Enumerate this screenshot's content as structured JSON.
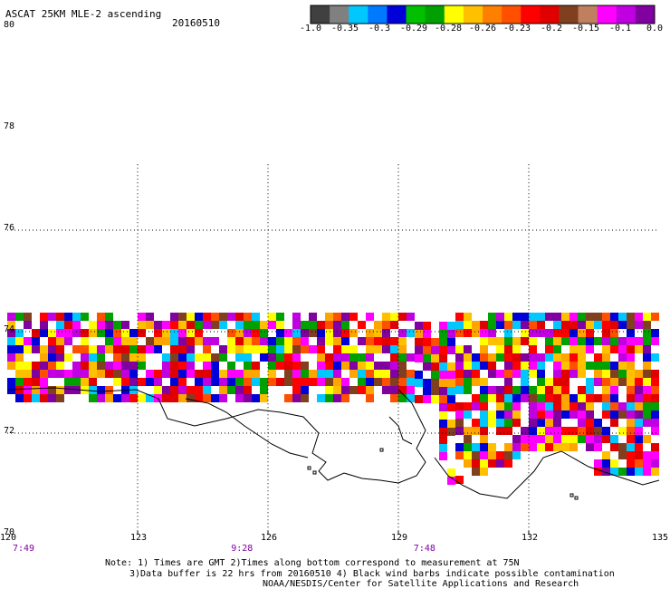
{
  "header": {
    "title": "ASCAT 25KM MLE-2 ascending",
    "date": "20160510"
  },
  "colorbar": {
    "colors": [
      "#404040",
      "#808080",
      "#00c8ff",
      "#0078ff",
      "#0000d8",
      "#00c000",
      "#00a000",
      "#ffff00",
      "#ffc000",
      "#ff8000",
      "#ff5000",
      "#ff0000",
      "#e00000",
      "#804020",
      "#c08060",
      "#ff00ff",
      "#c000e0",
      "#8000a0"
    ],
    "labels": [
      "-1.0",
      "-0.35",
      "-0.3",
      "-0.29",
      "-0.28",
      "-0.26",
      "-0.23",
      "-0.2",
      "-0.15",
      "-0.1",
      "0.0"
    ]
  },
  "axes": {
    "lon_ticks": [
      "120",
      "123",
      "126",
      "129",
      "132",
      "135"
    ],
    "lat_ticks": [
      "70",
      "72",
      "74",
      "76",
      "78",
      "80"
    ],
    "lon_range": [
      120,
      135
    ],
    "lat_range": [
      70,
      80
    ],
    "times": [
      "7:49",
      "9:28",
      "7:48"
    ]
  },
  "notes": {
    "line1": "Note: 1) Times are GMT 2)Times along bottom correspond to measurement at 75N",
    "line2": "3)Data buffer is 22 hrs from 20160510 4) Black wind barbs indicate possible contamination",
    "line3": "NOAA/NESDIS/Center for Satellite Applications and Research"
  },
  "swath_colors": [
    "#ff0000",
    "#ff00ff",
    "#ffa500",
    "#ffffff",
    "#c000e0",
    "#ffff00",
    "#e00000",
    "#804020",
    "#ff5000",
    "#8000a0",
    "#00a000",
    "#0000d8",
    "#00c8ff",
    "#ffc000"
  ]
}
